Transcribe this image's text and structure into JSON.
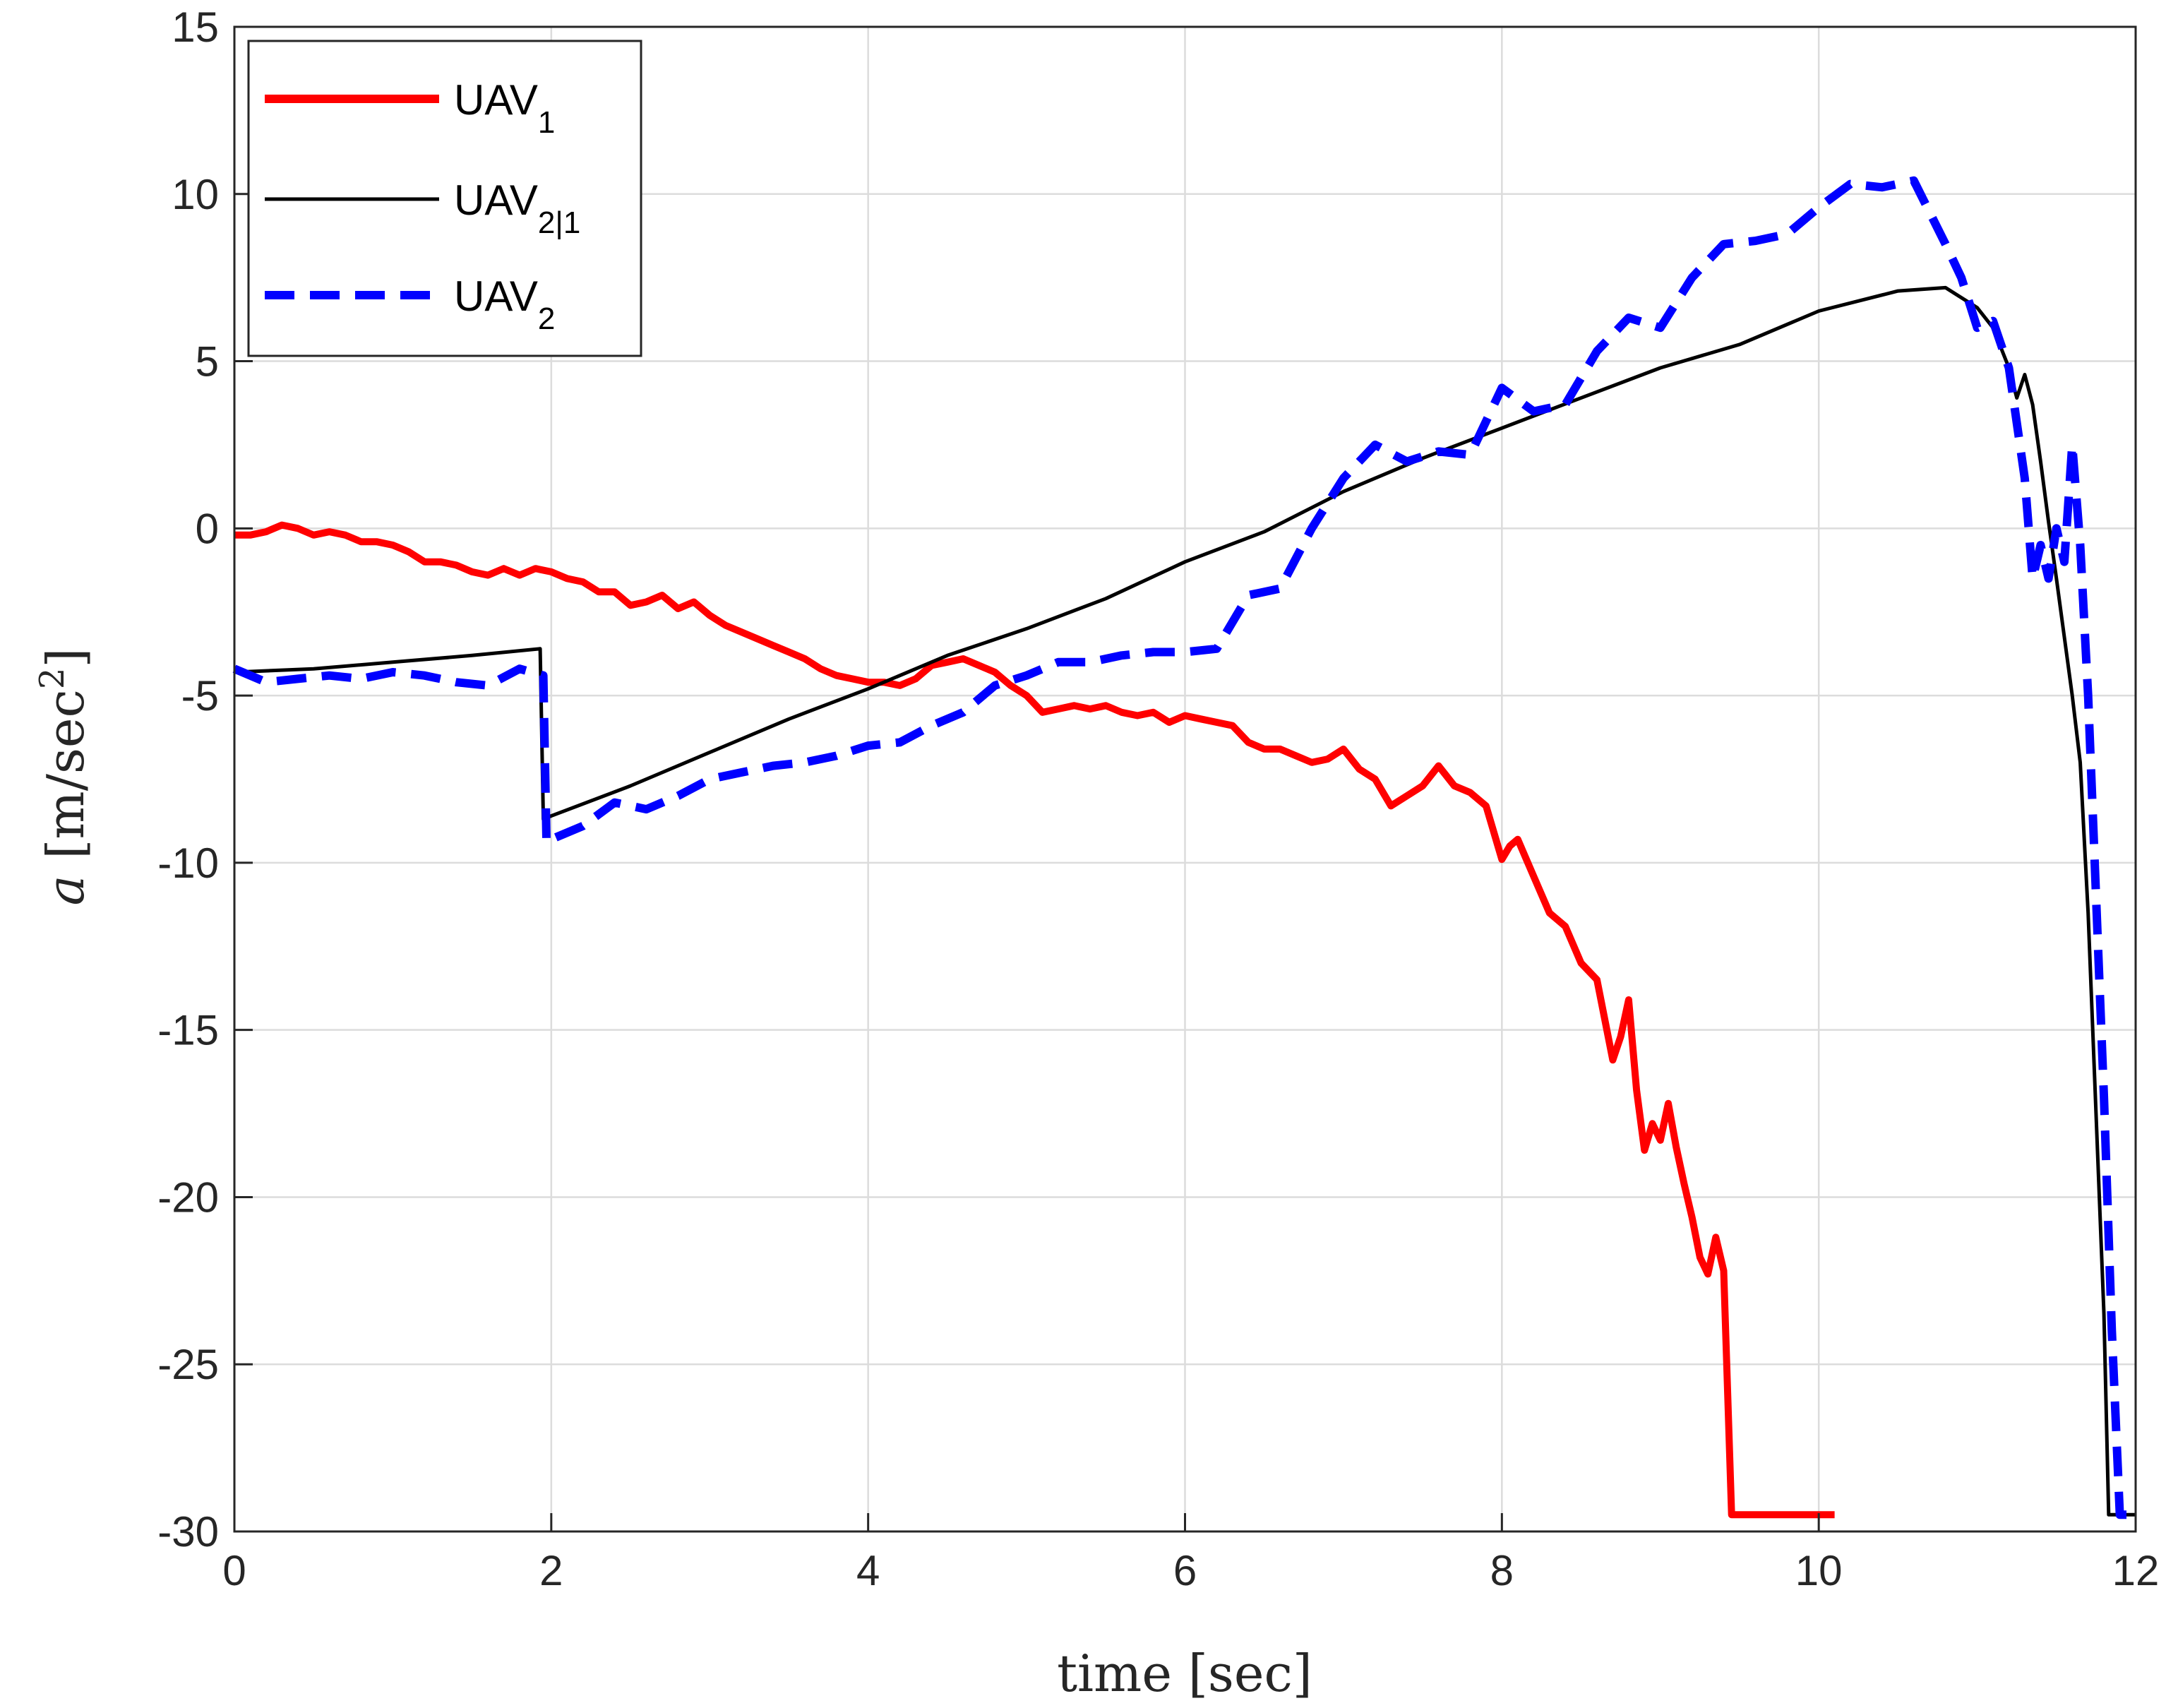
{
  "chart_data": {
    "type": "line",
    "xlabel": "time [sec]",
    "ylabel_italic": "a",
    "ylabel_rest": " [m/sec",
    "ylabel_sup": "2",
    "ylabel_end": "]",
    "xlim": [
      0,
      12
    ],
    "ylim": [
      -30,
      15
    ],
    "xticks": [
      0,
      2,
      4,
      6,
      8,
      10,
      12
    ],
    "yticks": [
      15,
      10,
      5,
      0,
      -5,
      -10,
      -15,
      -20,
      -25,
      -30
    ],
    "grid": true,
    "legend_position": "top-left",
    "series": [
      {
        "id": "uav1",
        "legend_main": "UAV",
        "legend_sub": "1",
        "color": "#ff0000",
        "style": "solid-thick",
        "x": [
          0,
          0.1,
          0.2,
          0.3,
          0.4,
          0.5,
          0.6,
          0.7,
          0.8,
          0.9,
          1.0,
          1.1,
          1.2,
          1.3,
          1.4,
          1.5,
          1.6,
          1.7,
          1.8,
          1.9,
          2.0,
          2.1,
          2.2,
          2.3,
          2.4,
          2.5,
          2.6,
          2.7,
          2.8,
          2.9,
          3.0,
          3.1,
          3.2,
          3.3,
          3.4,
          3.5,
          3.6,
          3.7,
          3.8,
          3.9,
          4.0,
          4.1,
          4.2,
          4.3,
          4.4,
          4.5,
          4.6,
          4.7,
          4.8,
          4.9,
          5.0,
          5.1,
          5.2,
          5.3,
          5.4,
          5.5,
          5.6,
          5.7,
          5.8,
          5.9,
          6.0,
          6.1,
          6.2,
          6.3,
          6.4,
          6.5,
          6.6,
          6.7,
          6.8,
          6.9,
          7.0,
          7.1,
          7.2,
          7.3,
          7.4,
          7.5,
          7.6,
          7.7,
          7.8,
          7.9,
          8.0,
          8.05,
          8.1,
          8.2,
          8.3,
          8.4,
          8.5,
          8.6,
          8.7,
          8.75,
          8.8,
          8.85,
          8.9,
          8.95,
          9.0,
          9.05,
          9.1,
          9.15,
          9.2,
          9.25,
          9.3,
          9.35,
          9.4,
          9.45,
          9.5,
          9.6,
          9.8,
          10.0,
          10.1
        ],
        "y": [
          -0.2,
          -0.2,
          -0.1,
          0.1,
          0.0,
          -0.2,
          -0.1,
          -0.2,
          -0.4,
          -0.4,
          -0.5,
          -0.7,
          -1.0,
          -1.0,
          -1.1,
          -1.3,
          -1.4,
          -1.2,
          -1.4,
          -1.2,
          -1.3,
          -1.5,
          -1.6,
          -1.9,
          -1.9,
          -2.3,
          -2.2,
          -2.0,
          -2.4,
          -2.2,
          -2.6,
          -2.9,
          -3.1,
          -3.3,
          -3.5,
          -3.7,
          -3.9,
          -4.2,
          -4.4,
          -4.5,
          -4.6,
          -4.6,
          -4.7,
          -4.5,
          -4.1,
          -4.0,
          -3.9,
          -4.1,
          -4.3,
          -4.7,
          -5.0,
          -5.5,
          -5.4,
          -5.3,
          -5.4,
          -5.3,
          -5.5,
          -5.6,
          -5.5,
          -5.8,
          -5.6,
          -5.7,
          -5.8,
          -5.9,
          -6.4,
          -6.6,
          -6.6,
          -6.8,
          -7.0,
          -6.9,
          -6.6,
          -7.2,
          -7.5,
          -8.3,
          -8.0,
          -7.7,
          -7.1,
          -7.7,
          -7.9,
          -8.3,
          -9.9,
          -9.5,
          -9.3,
          -10.4,
          -11.5,
          -11.9,
          -13.0,
          -13.5,
          -15.9,
          -15.2,
          -14.1,
          -16.8,
          -18.6,
          -17.8,
          -18.3,
          -17.2,
          -18.5,
          -19.6,
          -20.6,
          -21.8,
          -22.3,
          -21.2,
          -22.2,
          -29.5,
          -29.5,
          -29.5,
          -29.5,
          -29.5,
          -29.5
        ]
      },
      {
        "id": "uav21",
        "legend_main": "UAV",
        "legend_sub": "2|1",
        "color": "#000000",
        "style": "solid-thin",
        "x": [
          0,
          0.5,
          1.0,
          1.5,
          1.93,
          1.95,
          2.0,
          2.5,
          3.0,
          3.5,
          4.0,
          4.5,
          5.0,
          5.5,
          6.0,
          6.5,
          7.0,
          7.5,
          8.0,
          8.5,
          9.0,
          9.5,
          10.0,
          10.5,
          10.8,
          11.0,
          11.1,
          11.2,
          11.25,
          11.3,
          11.35,
          11.4,
          11.45,
          11.5,
          11.6,
          11.65,
          11.7,
          11.75,
          11.8,
          11.83,
          11.9,
          12.0
        ],
        "y": [
          -4.3,
          -4.2,
          -4.0,
          -3.8,
          -3.6,
          -8.7,
          -8.6,
          -7.7,
          -6.7,
          -5.7,
          -4.8,
          -3.8,
          -3.0,
          -2.1,
          -1.0,
          -0.1,
          1.1,
          2.1,
          3.0,
          3.9,
          4.8,
          5.5,
          6.5,
          7.1,
          7.2,
          6.6,
          6.0,
          4.8,
          3.9,
          4.6,
          3.7,
          2.0,
          0.2,
          -1.5,
          -5.0,
          -7.0,
          -11.5,
          -17.5,
          -23.5,
          -29.5,
          -29.5,
          -29.5
        ]
      },
      {
        "id": "uav2",
        "legend_main": "UAV",
        "legend_sub": "2",
        "color": "#0000ff",
        "style": "dashed-thick",
        "x": [
          0,
          0.2,
          0.4,
          0.6,
          0.8,
          1.0,
          1.2,
          1.4,
          1.6,
          1.8,
          1.95,
          1.97,
          2.0,
          2.2,
          2.4,
          2.6,
          2.8,
          3.0,
          3.2,
          3.4,
          3.6,
          3.8,
          4.0,
          4.2,
          4.4,
          4.6,
          4.8,
          5.0,
          5.2,
          5.4,
          5.6,
          5.8,
          6.0,
          6.2,
          6.4,
          6.6,
          6.8,
          7.0,
          7.2,
          7.4,
          7.6,
          7.8,
          8.0,
          8.2,
          8.4,
          8.6,
          8.8,
          9.0,
          9.2,
          9.4,
          9.6,
          9.8,
          10.0,
          10.2,
          10.4,
          10.6,
          10.8,
          10.9,
          11.0,
          11.1,
          11.2,
          11.3,
          11.35,
          11.4,
          11.45,
          11.5,
          11.55,
          11.6,
          11.65,
          11.7,
          11.75,
          11.8,
          11.85,
          11.9,
          12.0
        ],
        "y": [
          -4.2,
          -4.6,
          -4.5,
          -4.4,
          -4.5,
          -4.3,
          -4.4,
          -4.6,
          -4.7,
          -4.2,
          -4.4,
          -9.4,
          -9.3,
          -8.9,
          -8.2,
          -8.4,
          -8.0,
          -7.5,
          -7.3,
          -7.1,
          -7.0,
          -6.8,
          -6.5,
          -6.4,
          -5.9,
          -5.5,
          -4.7,
          -4.4,
          -4.0,
          -4.0,
          -3.8,
          -3.7,
          -3.7,
          -3.6,
          -2.0,
          -1.8,
          0.0,
          1.5,
          2.5,
          2.0,
          2.3,
          2.2,
          4.2,
          3.5,
          3.7,
          5.3,
          6.3,
          6.0,
          7.5,
          8.5,
          8.6,
          8.8,
          9.6,
          10.3,
          10.2,
          10.4,
          8.5,
          7.5,
          6.0,
          6.2,
          4.8,
          1.5,
          -1.5,
          -0.5,
          -1.5,
          0.0,
          -1.0,
          2.5,
          -0.5,
          -5.0,
          -11.0,
          -17.0,
          -24.0,
          -29.5,
          -29.5
        ]
      }
    ]
  }
}
